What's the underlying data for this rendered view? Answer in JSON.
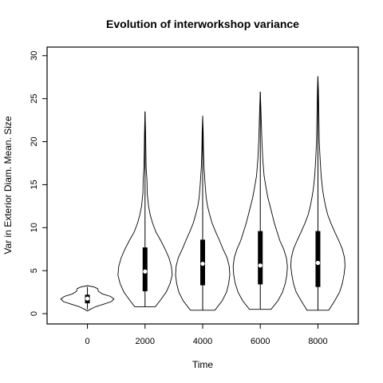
{
  "chart_data": {
    "type": "violin",
    "title": "Evolution of interworkshop variance",
    "xlabel": "Time",
    "ylabel": "Var in Exterior Diam. Mean. Size",
    "xlim": [
      -1400,
      9400
    ],
    "ylim": [
      -1.2,
      31
    ],
    "xticks": [
      0,
      2000,
      4000,
      6000,
      8000
    ],
    "yticks": [
      0,
      5,
      10,
      15,
      20,
      25,
      30
    ],
    "grid": false,
    "violins": [
      {
        "x": 0,
        "min": 0.5,
        "q1": 1.2,
        "median": 1.75,
        "q3": 2.2,
        "max": 3.1,
        "profile": [
          [
            0.3,
            0.0
          ],
          [
            0.5,
            0.1
          ],
          [
            0.8,
            0.3
          ],
          [
            1.1,
            0.6
          ],
          [
            1.4,
            0.88
          ],
          [
            1.7,
            0.98
          ],
          [
            2.0,
            0.85
          ],
          [
            2.3,
            0.55
          ],
          [
            2.6,
            0.4
          ],
          [
            2.9,
            0.38
          ],
          [
            3.1,
            0.25
          ],
          [
            3.25,
            0.0
          ]
        ]
      },
      {
        "x": 2000,
        "min": 0.8,
        "q1": 2.6,
        "median": 4.9,
        "q3": 7.7,
        "max": 23.5,
        "profile": [
          [
            0.8,
            0.0
          ],
          [
            0.8,
            0.38
          ],
          [
            1.5,
            0.55
          ],
          [
            2.5,
            0.78
          ],
          [
            3.5,
            0.92
          ],
          [
            4.5,
            1.0
          ],
          [
            5.5,
            0.97
          ],
          [
            6.5,
            0.88
          ],
          [
            7.5,
            0.74
          ],
          [
            8.5,
            0.58
          ],
          [
            9.5,
            0.4
          ],
          [
            10.5,
            0.28
          ],
          [
            11.5,
            0.19
          ],
          [
            12.5,
            0.13
          ],
          [
            14,
            0.08
          ],
          [
            15.5,
            0.07
          ],
          [
            17,
            0.04
          ],
          [
            19,
            0.03
          ],
          [
            21,
            0.02
          ],
          [
            23.5,
            0.0
          ]
        ]
      },
      {
        "x": 4000,
        "min": 0.4,
        "q1": 3.3,
        "median": 5.8,
        "q3": 8.6,
        "max": 23.0,
        "profile": [
          [
            0.4,
            0.0
          ],
          [
            0.4,
            0.45
          ],
          [
            1.5,
            0.72
          ],
          [
            2.5,
            0.88
          ],
          [
            3.5,
            0.96
          ],
          [
            4.5,
            1.0
          ],
          [
            5.5,
            0.98
          ],
          [
            6.5,
            0.9
          ],
          [
            7.5,
            0.75
          ],
          [
            8.5,
            0.62
          ],
          [
            9.5,
            0.48
          ],
          [
            10.5,
            0.35
          ],
          [
            11.5,
            0.26
          ],
          [
            12.5,
            0.18
          ],
          [
            13.5,
            0.13
          ],
          [
            15,
            0.09
          ],
          [
            17,
            0.05
          ],
          [
            19,
            0.03
          ],
          [
            21,
            0.02
          ],
          [
            23,
            0.0
          ]
        ]
      },
      {
        "x": 6000,
        "min": 0.5,
        "q1": 3.4,
        "median": 5.6,
        "q3": 9.6,
        "max": 25.8,
        "profile": [
          [
            0.5,
            0.0
          ],
          [
            0.5,
            0.4
          ],
          [
            1.5,
            0.65
          ],
          [
            2.5,
            0.82
          ],
          [
            3.5,
            0.92
          ],
          [
            4.5,
            0.98
          ],
          [
            5.5,
            1.0
          ],
          [
            6.5,
            0.96
          ],
          [
            7.5,
            0.86
          ],
          [
            8.5,
            0.72
          ],
          [
            9.5,
            0.62
          ],
          [
            10.5,
            0.52
          ],
          [
            11.5,
            0.44
          ],
          [
            12.5,
            0.36
          ],
          [
            13.5,
            0.28
          ],
          [
            14.5,
            0.22
          ],
          [
            16,
            0.14
          ],
          [
            18,
            0.09
          ],
          [
            20,
            0.06
          ],
          [
            22,
            0.04
          ],
          [
            24,
            0.02
          ],
          [
            25.8,
            0.0
          ]
        ]
      },
      {
        "x": 8000,
        "min": 0.4,
        "q1": 3.1,
        "median": 5.9,
        "q3": 9.6,
        "max": 27.6,
        "profile": [
          [
            0.4,
            0.0
          ],
          [
            0.4,
            0.4
          ],
          [
            1.5,
            0.62
          ],
          [
            2.5,
            0.8
          ],
          [
            3.5,
            0.9
          ],
          [
            4.5,
            0.96
          ],
          [
            5.5,
            1.0
          ],
          [
            6.5,
            0.98
          ],
          [
            7.5,
            0.9
          ],
          [
            8.5,
            0.77
          ],
          [
            9.5,
            0.62
          ],
          [
            10.5,
            0.48
          ],
          [
            11.5,
            0.36
          ],
          [
            12.5,
            0.28
          ],
          [
            13.5,
            0.22
          ],
          [
            14.5,
            0.17
          ],
          [
            16,
            0.12
          ],
          [
            18,
            0.08
          ],
          [
            20,
            0.05
          ],
          [
            22,
            0.04
          ],
          [
            24,
            0.03
          ],
          [
            26,
            0.02
          ],
          [
            27.6,
            0.0
          ]
        ]
      }
    ]
  }
}
